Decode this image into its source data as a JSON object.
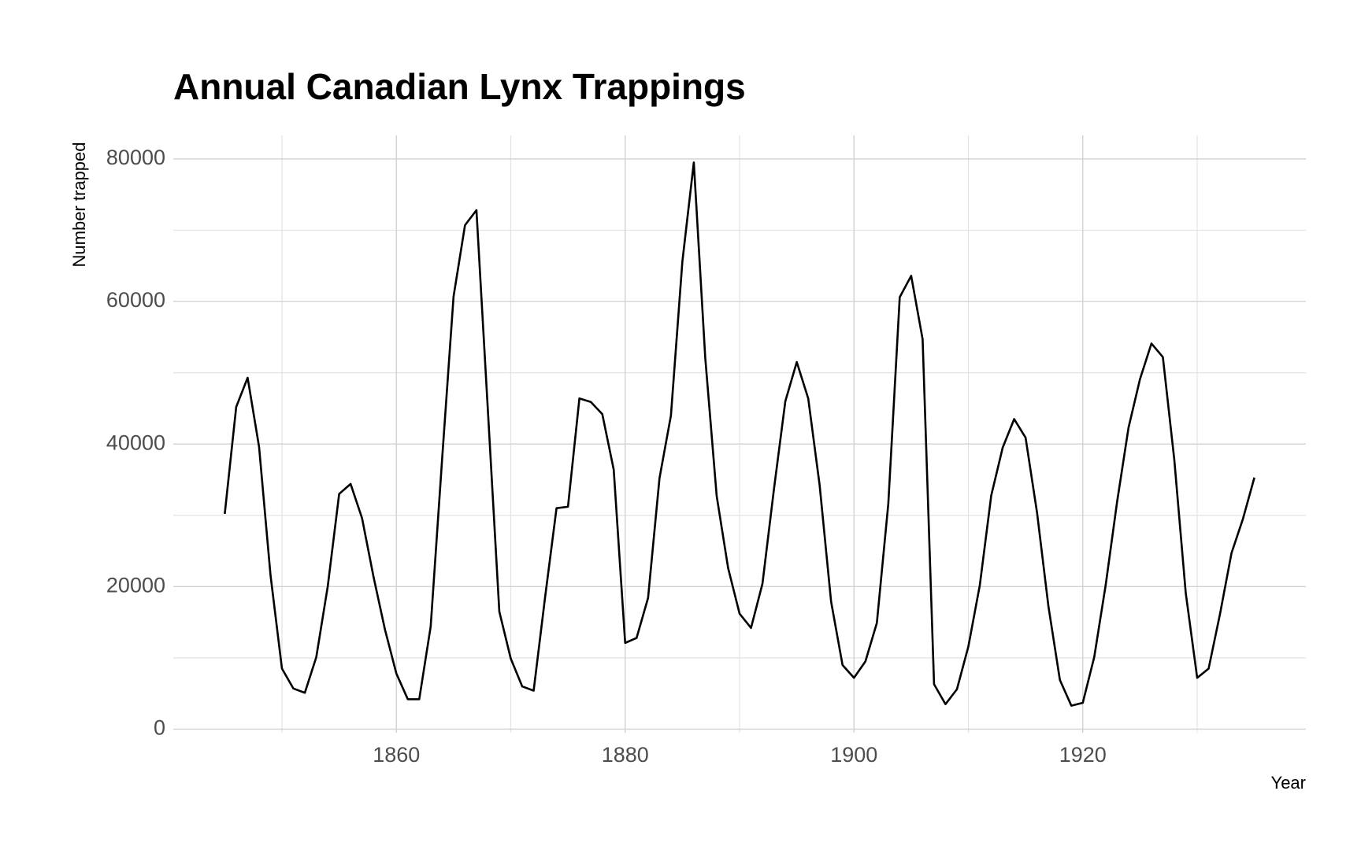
{
  "chart_data": {
    "type": "line",
    "title": "Annual Canadian Lynx Trappings",
    "x_label": "Year",
    "y_label": "Number trapped",
    "x": [
      1845,
      1846,
      1847,
      1848,
      1849,
      1850,
      1851,
      1852,
      1853,
      1854,
      1855,
      1856,
      1857,
      1858,
      1859,
      1860,
      1861,
      1862,
      1863,
      1864,
      1865,
      1866,
      1867,
      1868,
      1869,
      1870,
      1871,
      1872,
      1873,
      1874,
      1875,
      1876,
      1877,
      1878,
      1879,
      1880,
      1881,
      1882,
      1883,
      1884,
      1885,
      1886,
      1887,
      1888,
      1889,
      1890,
      1891,
      1892,
      1893,
      1894,
      1895,
      1896,
      1897,
      1898,
      1899,
      1900,
      1901,
      1902,
      1903,
      1904,
      1905,
      1906,
      1907,
      1908,
      1909,
      1910,
      1911,
      1912,
      1913,
      1914,
      1915,
      1916,
      1917,
      1918,
      1919,
      1920,
      1921,
      1922,
      1923,
      1924,
      1925,
      1926,
      1927,
      1928,
      1929,
      1930,
      1931,
      1932,
      1933,
      1934,
      1935
    ],
    "series": [
      {
        "name": "Number trapped",
        "color": "#000000",
        "values": [
          30200,
          45200,
          49300,
          39600,
          21600,
          8500,
          5700,
          5100,
          10100,
          20000,
          33000,
          34400,
          29600,
          21400,
          14000,
          7800,
          4200,
          4200,
          14400,
          37900,
          60700,
          70700,
          72800,
          44700,
          16500,
          9900,
          6000,
          5400,
          18500,
          31000,
          31200,
          46400,
          45900,
          44200,
          36400,
          12100,
          12800,
          18400,
          35200,
          44000,
          65600,
          79500,
          52100,
          32700,
          22600,
          16200,
          14200,
          20400,
          33600,
          46000,
          51500,
          46400,
          34200,
          17900,
          9000,
          7200,
          9500,
          14900,
          31600,
          60600,
          63600,
          54700,
          6300,
          3500,
          5600,
          11600,
          20200,
          32800,
          39500,
          43500,
          40900,
          30400,
          17200,
          6900,
          3300,
          3700,
          10100,
          20200,
          31900,
          42300,
          49100,
          54100,
          52200,
          37800,
          19100,
          7200,
          8500,
          16200,
          24700,
          29500,
          35300
        ]
      }
    ],
    "xlim": [
      1840.5,
      1939.5
    ],
    "ylim": [
      -500,
      83300
    ],
    "xticks": [
      1860,
      1880,
      1900,
      1920
    ],
    "yticks": [
      0,
      20000,
      40000,
      60000,
      80000
    ],
    "x_minor_grid": [
      1850,
      1870,
      1890,
      1910,
      1930
    ],
    "y_minor_grid": [
      10000,
      30000,
      50000,
      70000
    ],
    "grid": true
  }
}
